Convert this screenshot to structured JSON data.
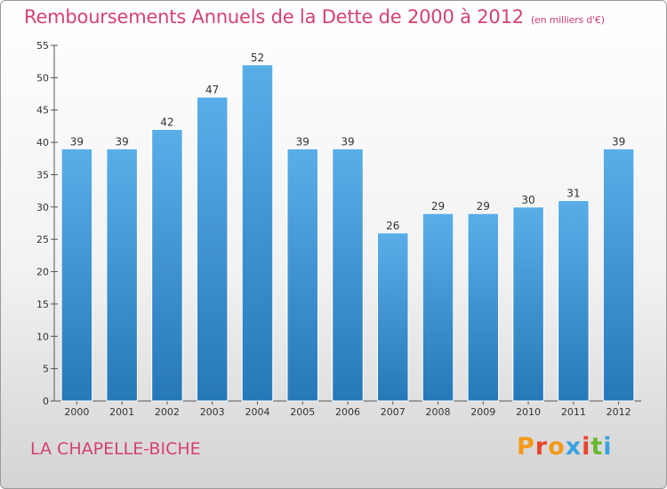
{
  "header": {
    "title": "Remboursements Annuels de la Dette de 2000 à 2012",
    "unit": "(en milliers d'€)"
  },
  "footer": {
    "place": "LA CHAPELLE-BICHE",
    "logo": "Proxiti"
  },
  "colors": {
    "title": "#d4426e",
    "bar_top": "#5aaee8",
    "bar_bottom": "#2678b8",
    "logo_letters": [
      "#f39a1b",
      "#e8442c",
      "#f39a1b",
      "#3aa1e0",
      "#e8442c",
      "#68b82e",
      "#3aa1e0"
    ]
  },
  "chart_data": {
    "type": "bar",
    "title": "Remboursements Annuels de la Dette de 2000 à 2012",
    "categories": [
      "2000",
      "2001",
      "2002",
      "2003",
      "2004",
      "2005",
      "2006",
      "2007",
      "2008",
      "2009",
      "2010",
      "2011",
      "2012"
    ],
    "values": [
      39,
      39,
      42,
      47,
      52,
      39,
      39,
      26,
      29,
      29,
      30,
      31,
      39
    ],
    "ylim": [
      0,
      55
    ],
    "yticks": [
      0,
      5,
      10,
      15,
      20,
      25,
      30,
      35,
      40,
      45,
      50,
      55
    ],
    "grid": false,
    "data_labels": true
  }
}
